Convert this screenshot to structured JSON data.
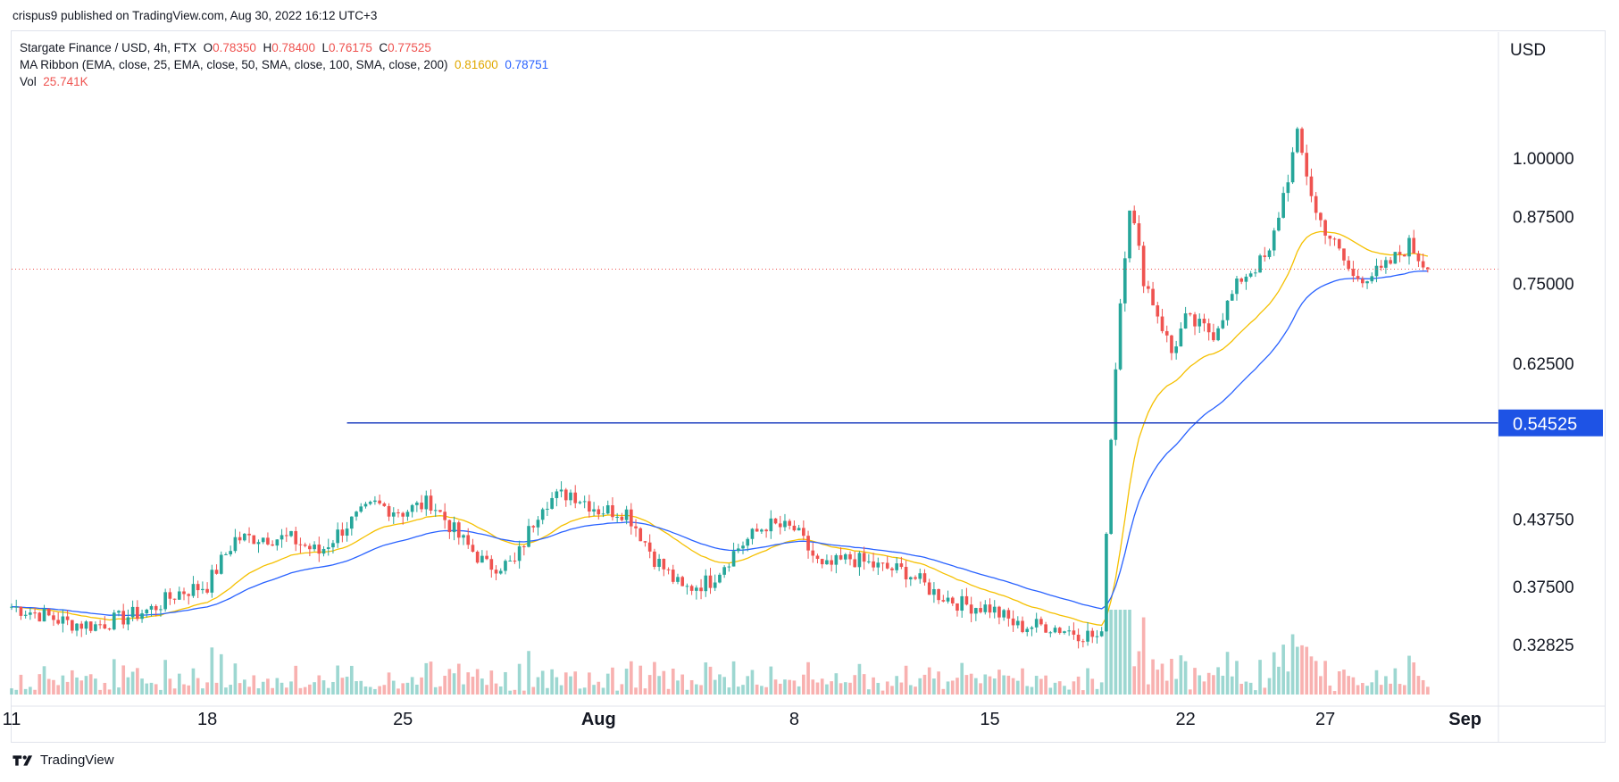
{
  "publisher": "crispus9 published on TradingView.com, Aug 30, 2022 16:12 UTC+3",
  "legend": {
    "symbol": "Stargate Finance / USD, 4h, FTX",
    "o_label": "O",
    "o": "0.78350",
    "h_label": "H",
    "h": "0.78400",
    "l_label": "L",
    "l": "0.76175",
    "c_label": "C",
    "c": "0.77525",
    "ma_label": "MA Ribbon (EMA, close, 25, EMA, close, 50, SMA, close, 100, SMA, close, 200)",
    "ma_value_1": "0.81600",
    "ma_value_2": "0.78751",
    "vol_label": "Vol",
    "vol_value": "25.741K"
  },
  "footer": {
    "brand": "TradingView"
  },
  "colors": {
    "up": "#26a69a",
    "down": "#ef5350",
    "ma_fast": "#f5c000",
    "ma_slow": "#2962ff",
    "level": "#1e3fc0",
    "price_line": "#ef5350",
    "badge": "#1e53e5"
  },
  "chart_data": {
    "type": "candlestick",
    "title": "Stargate Finance / USD, 4h, FTX",
    "currency_label": "USD",
    "y_ticks": [
      "1.00000",
      "0.87500",
      "0.75000",
      "0.62500",
      "0.43750",
      "0.37500",
      "0.32825"
    ],
    "x_ticks": [
      "11",
      "18",
      "25",
      "Aug",
      "8",
      "15",
      "22",
      "27",
      "Sep"
    ],
    "x_tick_dates": [
      "2022-07-11",
      "2022-07-18",
      "2022-07-25",
      "2022-08-01",
      "2022-08-08",
      "2022-08-15",
      "2022-08-22",
      "2022-08-27",
      "2022-09-01"
    ],
    "horizontal_level": {
      "value": 0.54525,
      "label": "0.54525",
      "start_date": "2022-07-23"
    },
    "last_close": 0.77525,
    "price_keypoints": [
      [
        "2022-07-11",
        0.358
      ],
      [
        "2022-07-12",
        0.352
      ],
      [
        "2022-07-13",
        0.345
      ],
      [
        "2022-07-14",
        0.343
      ],
      [
        "2022-07-15",
        0.349
      ],
      [
        "2022-07-16",
        0.356
      ],
      [
        "2022-07-17",
        0.37
      ],
      [
        "2022-07-18",
        0.376
      ],
      [
        "2022-07-19",
        0.418
      ],
      [
        "2022-07-20",
        0.42
      ],
      [
        "2022-07-21",
        0.418
      ],
      [
        "2022-07-22",
        0.405
      ],
      [
        "2022-07-23",
        0.432
      ],
      [
        "2022-07-24",
        0.452
      ],
      [
        "2022-07-25",
        0.445
      ],
      [
        "2022-07-26",
        0.455
      ],
      [
        "2022-07-27",
        0.42
      ],
      [
        "2022-07-28",
        0.393
      ],
      [
        "2022-07-29",
        0.395
      ],
      [
        "2022-07-30",
        0.455
      ],
      [
        "2022-07-31",
        0.465
      ],
      [
        "2022-08-01",
        0.447
      ],
      [
        "2022-08-02",
        0.445
      ],
      [
        "2022-08-03",
        0.4
      ],
      [
        "2022-08-04",
        0.372
      ],
      [
        "2022-08-05",
        0.38
      ],
      [
        "2022-08-06",
        0.41
      ],
      [
        "2022-08-07",
        0.432
      ],
      [
        "2022-08-08",
        0.427
      ],
      [
        "2022-08-09",
        0.39
      ],
      [
        "2022-08-10",
        0.4
      ],
      [
        "2022-08-11",
        0.392
      ],
      [
        "2022-08-12",
        0.388
      ],
      [
        "2022-08-13",
        0.37
      ],
      [
        "2022-08-14",
        0.36
      ],
      [
        "2022-08-15",
        0.357
      ],
      [
        "2022-08-16",
        0.342
      ],
      [
        "2022-08-17",
        0.343
      ],
      [
        "2022-08-18",
        0.338
      ],
      [
        "2022-08-19",
        0.333
      ],
      [
        "2022-08-19T16",
        0.72
      ],
      [
        "2022-08-20",
        0.9
      ],
      [
        "2022-08-20T12",
        0.76
      ],
      [
        "2022-08-21",
        0.7
      ],
      [
        "2022-08-21T12",
        0.64
      ],
      [
        "2022-08-22",
        0.69
      ],
      [
        "2022-08-23",
        0.67
      ],
      [
        "2022-08-24",
        0.76
      ],
      [
        "2022-08-25",
        0.8
      ],
      [
        "2022-08-25T16",
        0.96
      ],
      [
        "2022-08-26",
        1.05
      ],
      [
        "2022-08-26T16",
        0.88
      ],
      [
        "2022-08-27",
        0.85
      ],
      [
        "2022-08-28",
        0.76
      ],
      [
        "2022-08-29",
        0.77
      ],
      [
        "2022-08-30",
        0.82
      ],
      [
        "2022-08-30T16",
        0.77525
      ]
    ],
    "ma_fast_last": 0.816,
    "ma_slow_last": 0.78751
  }
}
